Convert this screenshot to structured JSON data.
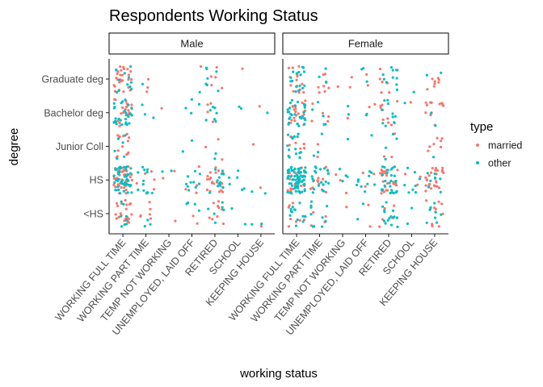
{
  "chart_data": {
    "type": "scatter",
    "title": "Respondents Working Status",
    "xlabel": "working status",
    "ylabel": "degree",
    "facets": [
      "Male",
      "Female"
    ],
    "x_categories": [
      "WORKING FULL TIME",
      "WORKING PART TIME",
      "TEMP NOT WORKING",
      "UNEMPLOYED, LAID OFF",
      "RETIRED",
      "SCHOOL",
      "KEEPING HOUSE"
    ],
    "y_categories": [
      "<HS",
      "HS",
      "Junior Coll",
      "Bachelor deg",
      "Graduate deg"
    ],
    "legend": {
      "title": "type",
      "position": "right"
    },
    "series": [
      {
        "name": "married",
        "color": "#F8766D"
      },
      {
        "name": "other",
        "color": "#00BFC4"
      }
    ],
    "jitter": true,
    "counts": {
      "Male": {
        "WORKING FULL TIME": {
          "<HS": [
            22,
            8
          ],
          "HS": [
            45,
            45
          ],
          "Junior Coll": [
            14,
            6
          ],
          "Bachelor deg": [
            22,
            28
          ],
          "Graduate deg": [
            28,
            12
          ]
        },
        "WORKING PART TIME": {
          "<HS": [
            6,
            3
          ],
          "HS": [
            6,
            12
          ],
          "Junior Coll": [
            0,
            0
          ],
          "Bachelor deg": [
            0,
            3
          ],
          "Graduate deg": [
            3,
            1
          ]
        },
        "TEMP NOT WORKING": {
          "<HS": [
            1,
            0
          ],
          "HS": [
            2,
            2
          ],
          "Junior Coll": [
            0,
            0
          ],
          "Bachelor deg": [
            1,
            0
          ],
          "Graduate deg": [
            0,
            0
          ]
        },
        "UNEMPLOYED, LAID OFF": {
          "<HS": [
            2,
            4
          ],
          "HS": [
            4,
            10
          ],
          "Junior Coll": [
            0,
            2
          ],
          "Bachelor deg": [
            0,
            4
          ],
          "Graduate deg": [
            1,
            1
          ]
        },
        "RETIRED": {
          "<HS": [
            10,
            6
          ],
          "HS": [
            22,
            12
          ],
          "Junior Coll": [
            3,
            2
          ],
          "Bachelor deg": [
            4,
            7
          ],
          "Graduate deg": [
            5,
            7
          ]
        },
        "SCHOOL": {
          "<HS": [
            0,
            2
          ],
          "HS": [
            0,
            6
          ],
          "Junior Coll": [
            0,
            0
          ],
          "Bachelor deg": [
            0,
            2
          ],
          "Graduate deg": [
            1,
            0
          ]
        },
        "KEEPING HOUSE": {
          "<HS": [
            1,
            2
          ],
          "HS": [
            1,
            2
          ],
          "Junior Coll": [
            1,
            0
          ],
          "Bachelor deg": [
            1,
            1
          ],
          "Graduate deg": [
            0,
            0
          ]
        }
      },
      "Female": {
        "WORKING FULL TIME": {
          "<HS": [
            8,
            14
          ],
          "HS": [
            25,
            70
          ],
          "Junior Coll": [
            6,
            16
          ],
          "Bachelor deg": [
            22,
            28
          ],
          "Graduate deg": [
            14,
            16
          ]
        },
        "WORKING PART TIME": {
          "<HS": [
            6,
            10
          ],
          "HS": [
            12,
            22
          ],
          "Junior Coll": [
            2,
            3
          ],
          "Bachelor deg": [
            5,
            5
          ],
          "Graduate deg": [
            8,
            3
          ]
        },
        "TEMP NOT WORKING": {
          "<HS": [
            1,
            0
          ],
          "HS": [
            3,
            4
          ],
          "Junior Coll": [
            0,
            1
          ],
          "Bachelor deg": [
            1,
            2
          ],
          "Graduate deg": [
            3,
            0
          ]
        },
        "UNEMPLOYED, LAID OFF": {
          "<HS": [
            2,
            2
          ],
          "HS": [
            3,
            10
          ],
          "Junior Coll": [
            0,
            1
          ],
          "Bachelor deg": [
            2,
            2
          ],
          "Graduate deg": [
            2,
            3
          ]
        },
        "RETIRED": {
          "<HS": [
            5,
            16
          ],
          "HS": [
            25,
            25
          ],
          "Junior Coll": [
            3,
            4
          ],
          "Bachelor deg": [
            10,
            10
          ],
          "Graduate deg": [
            8,
            10
          ]
        },
        "SCHOOL": {
          "<HS": [
            0,
            2
          ],
          "HS": [
            3,
            8
          ],
          "Junior Coll": [
            0,
            0
          ],
          "Bachelor deg": [
            1,
            1
          ],
          "Graduate deg": [
            0,
            1
          ]
        },
        "KEEPING HOUSE": {
          "<HS": [
            12,
            8
          ],
          "HS": [
            25,
            8
          ],
          "Junior Coll": [
            7,
            1
          ],
          "Bachelor deg": [
            12,
            2
          ],
          "Graduate deg": [
            8,
            2
          ]
        }
      }
    }
  }
}
